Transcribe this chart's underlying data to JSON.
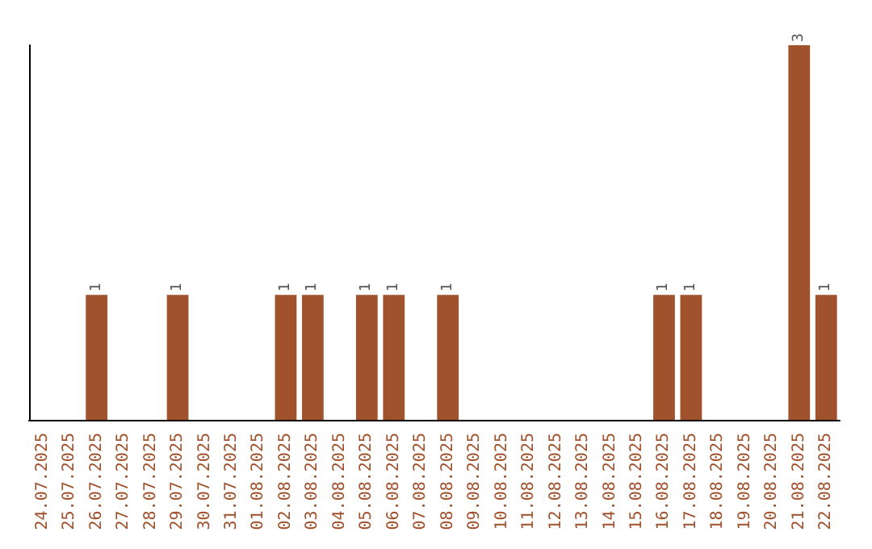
{
  "chart_data": {
    "type": "bar",
    "categories": [
      "24.07.2025",
      "25.07.2025",
      "26.07.2025",
      "27.07.2025",
      "28.07.2025",
      "29.07.2025",
      "30.07.2025",
      "31.07.2025",
      "01.08.2025",
      "02.08.2025",
      "03.08.2025",
      "04.08.2025",
      "05.08.2025",
      "06.08.2025",
      "07.08.2025",
      "08.08.2025",
      "09.08.2025",
      "10.08.2025",
      "11.08.2025",
      "12.08.2025",
      "13.08.2025",
      "14.08.2025",
      "15.08.2025",
      "16.08.2025",
      "17.08.2025",
      "18.08.2025",
      "19.08.2025",
      "20.08.2025",
      "21.08.2025",
      "22.08.2025"
    ],
    "values": [
      0,
      0,
      1,
      0,
      0,
      1,
      0,
      0,
      0,
      1,
      1,
      0,
      1,
      1,
      0,
      1,
      0,
      0,
      0,
      0,
      0,
      0,
      0,
      1,
      1,
      0,
      0,
      0,
      3,
      1
    ],
    "value_labels": [
      null,
      null,
      "1",
      null,
      null,
      "1",
      null,
      null,
      null,
      "1",
      "1",
      null,
      "1",
      "1",
      null,
      "1",
      null,
      null,
      null,
      null,
      null,
      null,
      null,
      "1",
      "1",
      null,
      null,
      null,
      "3",
      "1"
    ],
    "color": "#a0522d",
    "ylim": [
      0,
      3
    ],
    "tick_labels": "x",
    "grid": false
  }
}
